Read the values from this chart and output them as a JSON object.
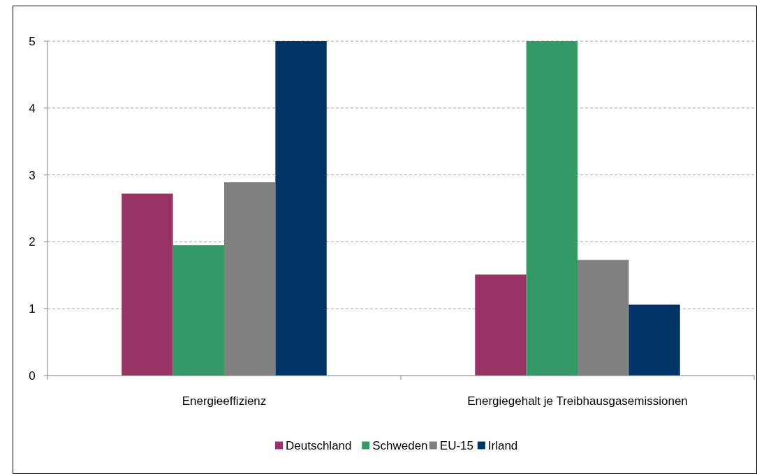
{
  "chart_data": {
    "type": "bar",
    "categories": [
      "Energieeffizienz",
      "Energiegehalt je Treibhausgasemissionen"
    ],
    "series": [
      {
        "name": "Deutschland",
        "color": "#993366",
        "values": [
          2.72,
          1.51
        ]
      },
      {
        "name": "Schweden",
        "color": "#339966",
        "values": [
          1.95,
          5
        ]
      },
      {
        "name": "EU-15",
        "color": "#808080",
        "values": [
          2.89,
          1.73
        ]
      },
      {
        "name": "Irland",
        "color": "#003366",
        "values": [
          5,
          1.06
        ]
      }
    ],
    "ylim": [
      0,
      5
    ],
    "yticks": [
      0,
      1,
      2,
      3,
      4,
      5
    ],
    "grid": "y",
    "legend": "bottom"
  }
}
